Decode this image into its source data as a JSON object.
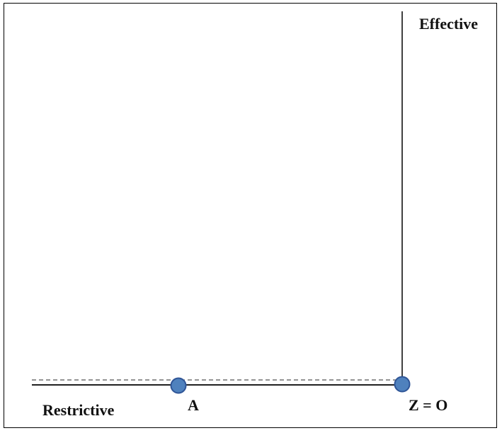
{
  "labels": {
    "effective": "Effective",
    "restrictive": "Restrictive",
    "point_a": "A",
    "point_z": "Z = O"
  },
  "colors": {
    "line": "#000000",
    "dashed_line": "#555555",
    "point_fill": "#4f81bd",
    "point_stroke": "#2f5597"
  }
}
